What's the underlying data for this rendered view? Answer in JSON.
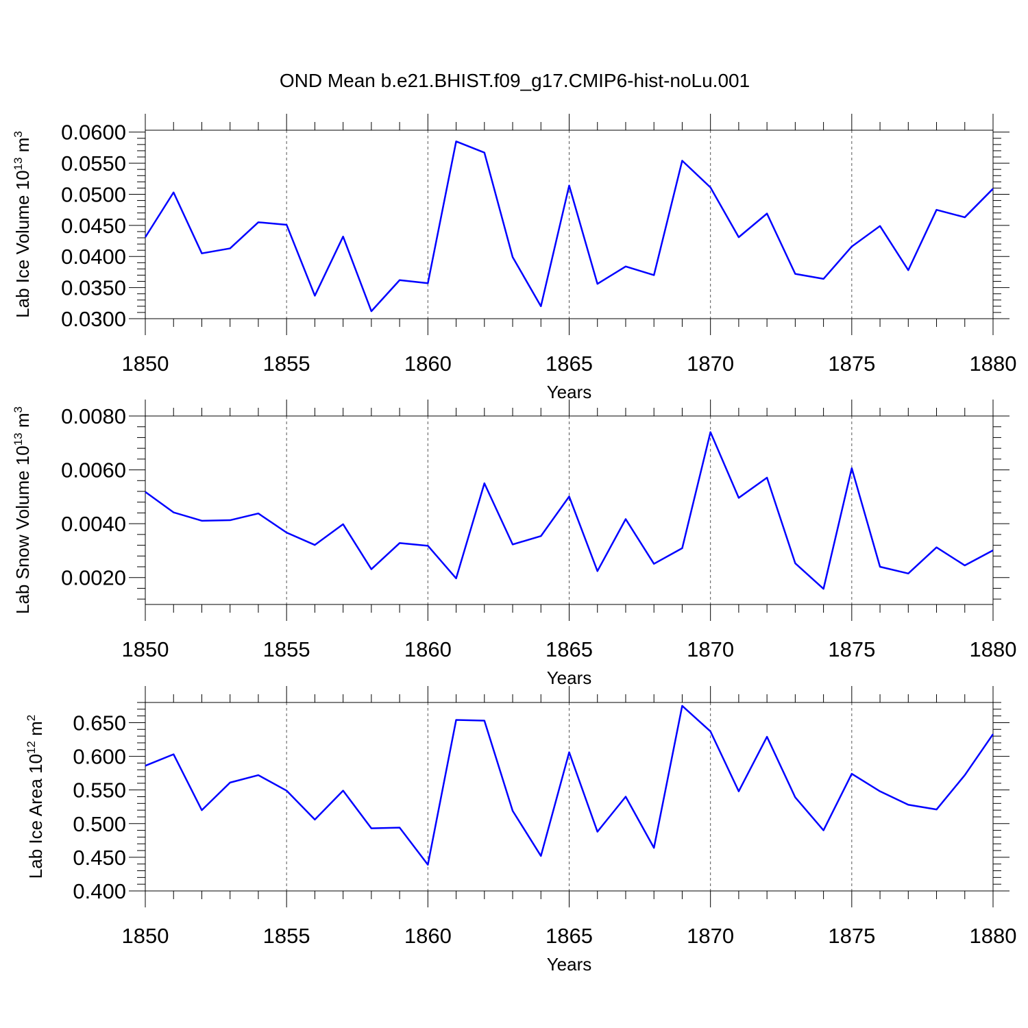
{
  "title": "OND Mean b.e21.BHIST.f09_g17.CMIP6-hist-noLu.001",
  "chart_data": [
    {
      "type": "line",
      "title": "OND Mean b.e21.BHIST.f09_g17.CMIP6-hist-noLu.001",
      "xlabel": "Years",
      "ylabel": {
        "main": "Lab Ice Volume 10",
        "sup": "13",
        "unit": " m",
        "unit_sup": "3"
      },
      "xlim": [
        1850,
        1880
      ],
      "ylim": [
        0.03,
        0.0603
      ],
      "xticks": [
        1850,
        1855,
        1860,
        1865,
        1870,
        1875,
        1880
      ],
      "xtick_labels": [
        "1850",
        "1855",
        "1860",
        "1865",
        "1870",
        "1875",
        "1880"
      ],
      "yticks": [
        0.03,
        0.035,
        0.04,
        0.045,
        0.05,
        0.055,
        0.06
      ],
      "ytick_labels": [
        "0.0300",
        "0.0350",
        "0.0400",
        "0.0450",
        "0.0500",
        "0.0550",
        "0.0600"
      ],
      "grid": "vertical dashed",
      "series": [
        {
          "name": "Lab Ice Volume",
          "color": "#0000ff",
          "x": [
            1850,
            1851,
            1852,
            1853,
            1854,
            1855,
            1856,
            1857,
            1858,
            1859,
            1860,
            1861,
            1862,
            1863,
            1864,
            1865,
            1866,
            1867,
            1868,
            1869,
            1870,
            1871,
            1872,
            1873,
            1874,
            1875,
            1876,
            1877,
            1878,
            1879,
            1880
          ],
          "values": [
            0.0431,
            0.0503,
            0.0405,
            0.0413,
            0.0455,
            0.0451,
            0.0337,
            0.0432,
            0.0312,
            0.0362,
            0.0357,
            0.0585,
            0.0567,
            0.0399,
            0.032,
            0.0514,
            0.0356,
            0.0384,
            0.037,
            0.0554,
            0.0511,
            0.0431,
            0.0469,
            0.0372,
            0.0364,
            0.0416,
            0.0449,
            0.0378,
            0.0475,
            0.0463,
            0.0509
          ]
        }
      ]
    },
    {
      "type": "line",
      "xlabel": "Years",
      "ylabel": {
        "main": "Lab Snow Volume 10",
        "sup": "13",
        "unit": " m",
        "unit_sup": "3"
      },
      "xlim": [
        1850,
        1880
      ],
      "ylim": [
        0.001,
        0.008
      ],
      "xticks": [
        1850,
        1855,
        1860,
        1865,
        1870,
        1875,
        1880
      ],
      "xtick_labels": [
        "1850",
        "1855",
        "1860",
        "1865",
        "1870",
        "1875",
        "1880"
      ],
      "yticks": [
        0.002,
        0.004,
        0.006,
        0.008
      ],
      "ytick_labels": [
        "0.0020",
        "0.0040",
        "0.0060",
        "0.0080"
      ],
      "grid": "vertical dashed",
      "series": [
        {
          "name": "Lab Snow Volume",
          "color": "#0000ff",
          "x": [
            1850,
            1851,
            1852,
            1853,
            1854,
            1855,
            1856,
            1857,
            1858,
            1859,
            1860,
            1861,
            1862,
            1863,
            1864,
            1865,
            1866,
            1867,
            1868,
            1869,
            1870,
            1871,
            1872,
            1873,
            1874,
            1875,
            1876,
            1877,
            1878,
            1879,
            1880
          ],
          "values": [
            0.00518,
            0.00442,
            0.00411,
            0.00413,
            0.00438,
            0.00367,
            0.00321,
            0.00398,
            0.00231,
            0.00328,
            0.00318,
            0.00197,
            0.0055,
            0.00323,
            0.00354,
            0.00501,
            0.00224,
            0.00417,
            0.00251,
            0.00309,
            0.0074,
            0.00496,
            0.00571,
            0.00253,
            0.00158,
            0.00606,
            0.0024,
            0.00215,
            0.00312,
            0.00245,
            0.00301
          ]
        }
      ]
    },
    {
      "type": "line",
      "xlabel": "Years",
      "ylabel": {
        "main": "Lab Ice Area 10",
        "sup": "12",
        "unit": " m",
        "unit_sup": "2"
      },
      "xlim": [
        1850,
        1880
      ],
      "ylim": [
        0.4,
        0.68
      ],
      "xticks": [
        1850,
        1855,
        1860,
        1865,
        1870,
        1875,
        1880
      ],
      "xtick_labels": [
        "1850",
        "1855",
        "1860",
        "1865",
        "1870",
        "1875",
        "1880"
      ],
      "yticks": [
        0.4,
        0.45,
        0.5,
        0.55,
        0.6,
        0.65
      ],
      "ytick_labels": [
        "0.400",
        "0.450",
        "0.500",
        "0.550",
        "0.600",
        "0.650"
      ],
      "grid": "vertical dashed",
      "series": [
        {
          "name": "Lab Ice Area",
          "color": "#0000ff",
          "x": [
            1850,
            1851,
            1852,
            1853,
            1854,
            1855,
            1856,
            1857,
            1858,
            1859,
            1860,
            1861,
            1862,
            1863,
            1864,
            1865,
            1866,
            1867,
            1868,
            1869,
            1870,
            1871,
            1872,
            1873,
            1874,
            1875,
            1876,
            1877,
            1878,
            1879,
            1880
          ],
          "values": [
            0.586,
            0.603,
            0.52,
            0.561,
            0.572,
            0.549,
            0.506,
            0.549,
            0.493,
            0.494,
            0.439,
            0.654,
            0.653,
            0.519,
            0.452,
            0.606,
            0.488,
            0.54,
            0.464,
            0.675,
            0.637,
            0.548,
            0.629,
            0.539,
            0.49,
            0.574,
            0.548,
            0.528,
            0.521,
            0.572,
            0.633
          ]
        }
      ]
    }
  ]
}
